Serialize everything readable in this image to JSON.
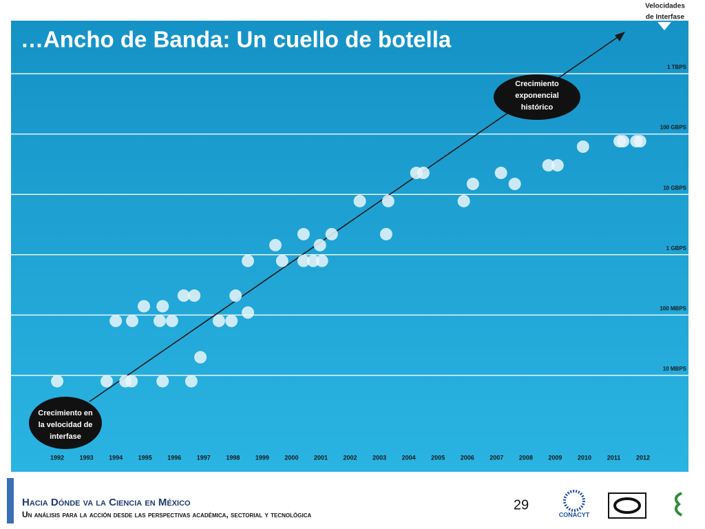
{
  "chart_data": {
    "type": "scatter",
    "title": "…Ancho de Banda: Un cuello de botella",
    "y_axis_label": [
      "Velocidades",
      "de Interfase"
    ],
    "annotations": [
      {
        "lines": [
          "Crecimiento en",
          "la velocidad de",
          "interfase"
        ]
      },
      {
        "lines": [
          "Crecimiento",
          "exponencial",
          "histórico"
        ]
      }
    ],
    "log_y": true,
    "grid": true,
    "color": "#eaf6fb",
    "x": [
      1992.0,
      1993.69,
      1994.33,
      1994.54,
      1995.6,
      1996.58,
      1994.0,
      1994.56,
      1994.96,
      1995.6,
      1995.5,
      1995.92,
      1996.32,
      1996.68,
      1996.89,
      1997.52,
      1997.95,
      1998.09,
      1998.51,
      1998.51,
      1999.45,
      1999.68,
      2000.41,
      2000.41,
      2000.74,
      2000.97,
      2001.04,
      2001.37,
      2002.33,
      2003.3,
      2003.23,
      2004.26,
      2004.5,
      2005.88,
      2006.19,
      2007.15,
      2007.62,
      2008.77,
      2009.08,
      2009.95,
      2011.2,
      2011.32,
      2011.77,
      2011.9
    ],
    "values": [
      8,
      8,
      8,
      8,
      8,
      8,
      80,
      80,
      140,
      140,
      80,
      80,
      210,
      210,
      20,
      80,
      80,
      210,
      110,
      790,
      1440,
      790,
      2190,
      790,
      790,
      1440,
      790,
      2190,
      7730,
      7730,
      2190,
      22700,
      22700,
      7730,
      14900,
      22700,
      14900,
      30300,
      30300,
      61700,
      76000,
      76000,
      76000,
      76000
    ],
    "xlim": [
      1991,
      2013
    ],
    "xticks": [
      1992,
      1993,
      1994,
      1995,
      1996,
      1997,
      1998,
      1999,
      2000,
      2001,
      2002,
      2003,
      2004,
      2005,
      2006,
      2007,
      2008,
      2009,
      2010,
      2011,
      2012
    ],
    "ylim": [
      1,
      10000000
    ],
    "yticks": [
      {
        "value": 10,
        "label": "10 MBPS"
      },
      {
        "value": 100,
        "label": "100 MBPS"
      },
      {
        "value": 1000,
        "label": "1 GBPS"
      },
      {
        "value": 10000,
        "label": "10 GBPS"
      },
      {
        "value": 100000,
        "label": "100 GBPS"
      },
      {
        "value": 1000000,
        "label": "1 TBPS"
      }
    ]
  },
  "footer": {
    "title": "Hacia Dónde va la Ciencia en México",
    "subtitle": "Un análisis para la acción desde las perspectivas académica, sectorial y tecnológica",
    "page": "29",
    "logo_text": "CONACYT"
  }
}
